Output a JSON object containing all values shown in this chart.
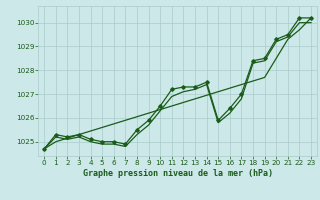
{
  "title": "Graphe pression niveau de la mer (hPa)",
  "bg_color": "#cce8e8",
  "grid_color": "#aacccc",
  "line_color": "#1a5c1a",
  "marker_color": "#1a5c1a",
  "xlim": [
    -0.5,
    23.5
  ],
  "ylim": [
    1024.4,
    1030.7
  ],
  "yticks": [
    1025,
    1026,
    1027,
    1028,
    1029,
    1030
  ],
  "xticks": [
    0,
    1,
    2,
    3,
    4,
    5,
    6,
    7,
    8,
    9,
    10,
    11,
    12,
    13,
    14,
    15,
    16,
    17,
    18,
    19,
    20,
    21,
    22,
    23
  ],
  "x_series": [
    0,
    1,
    2,
    3,
    4,
    5,
    6,
    7,
    8,
    9,
    10,
    11,
    12,
    13,
    14,
    15,
    16,
    17,
    18,
    19,
    20,
    21,
    22,
    23
  ],
  "series1": [
    1024.7,
    1025.3,
    1025.2,
    1025.3,
    1025.1,
    1025.0,
    1025.0,
    1024.9,
    1025.5,
    1025.9,
    1026.5,
    1027.2,
    1027.3,
    1027.3,
    1027.5,
    1025.9,
    1026.4,
    1027.0,
    1028.4,
    1028.5,
    1029.3,
    1029.5,
    1030.2,
    1030.2
  ],
  "series2": [
    1024.7,
    1025.2,
    1025.1,
    1025.2,
    1025.0,
    1024.9,
    1024.9,
    1024.8,
    1025.3,
    1025.7,
    1026.3,
    1026.9,
    1027.1,
    1027.2,
    1027.4,
    1025.8,
    1026.2,
    1026.8,
    1028.3,
    1028.4,
    1029.2,
    1029.4,
    1030.0,
    1030.0
  ],
  "trend": [
    1024.7,
    1025.0,
    1025.15,
    1025.3,
    1025.45,
    1025.6,
    1025.75,
    1025.9,
    1026.05,
    1026.2,
    1026.35,
    1026.5,
    1026.65,
    1026.8,
    1026.95,
    1027.1,
    1027.25,
    1027.4,
    1027.55,
    1027.7,
    1028.5,
    1029.3,
    1029.7,
    1030.2
  ]
}
